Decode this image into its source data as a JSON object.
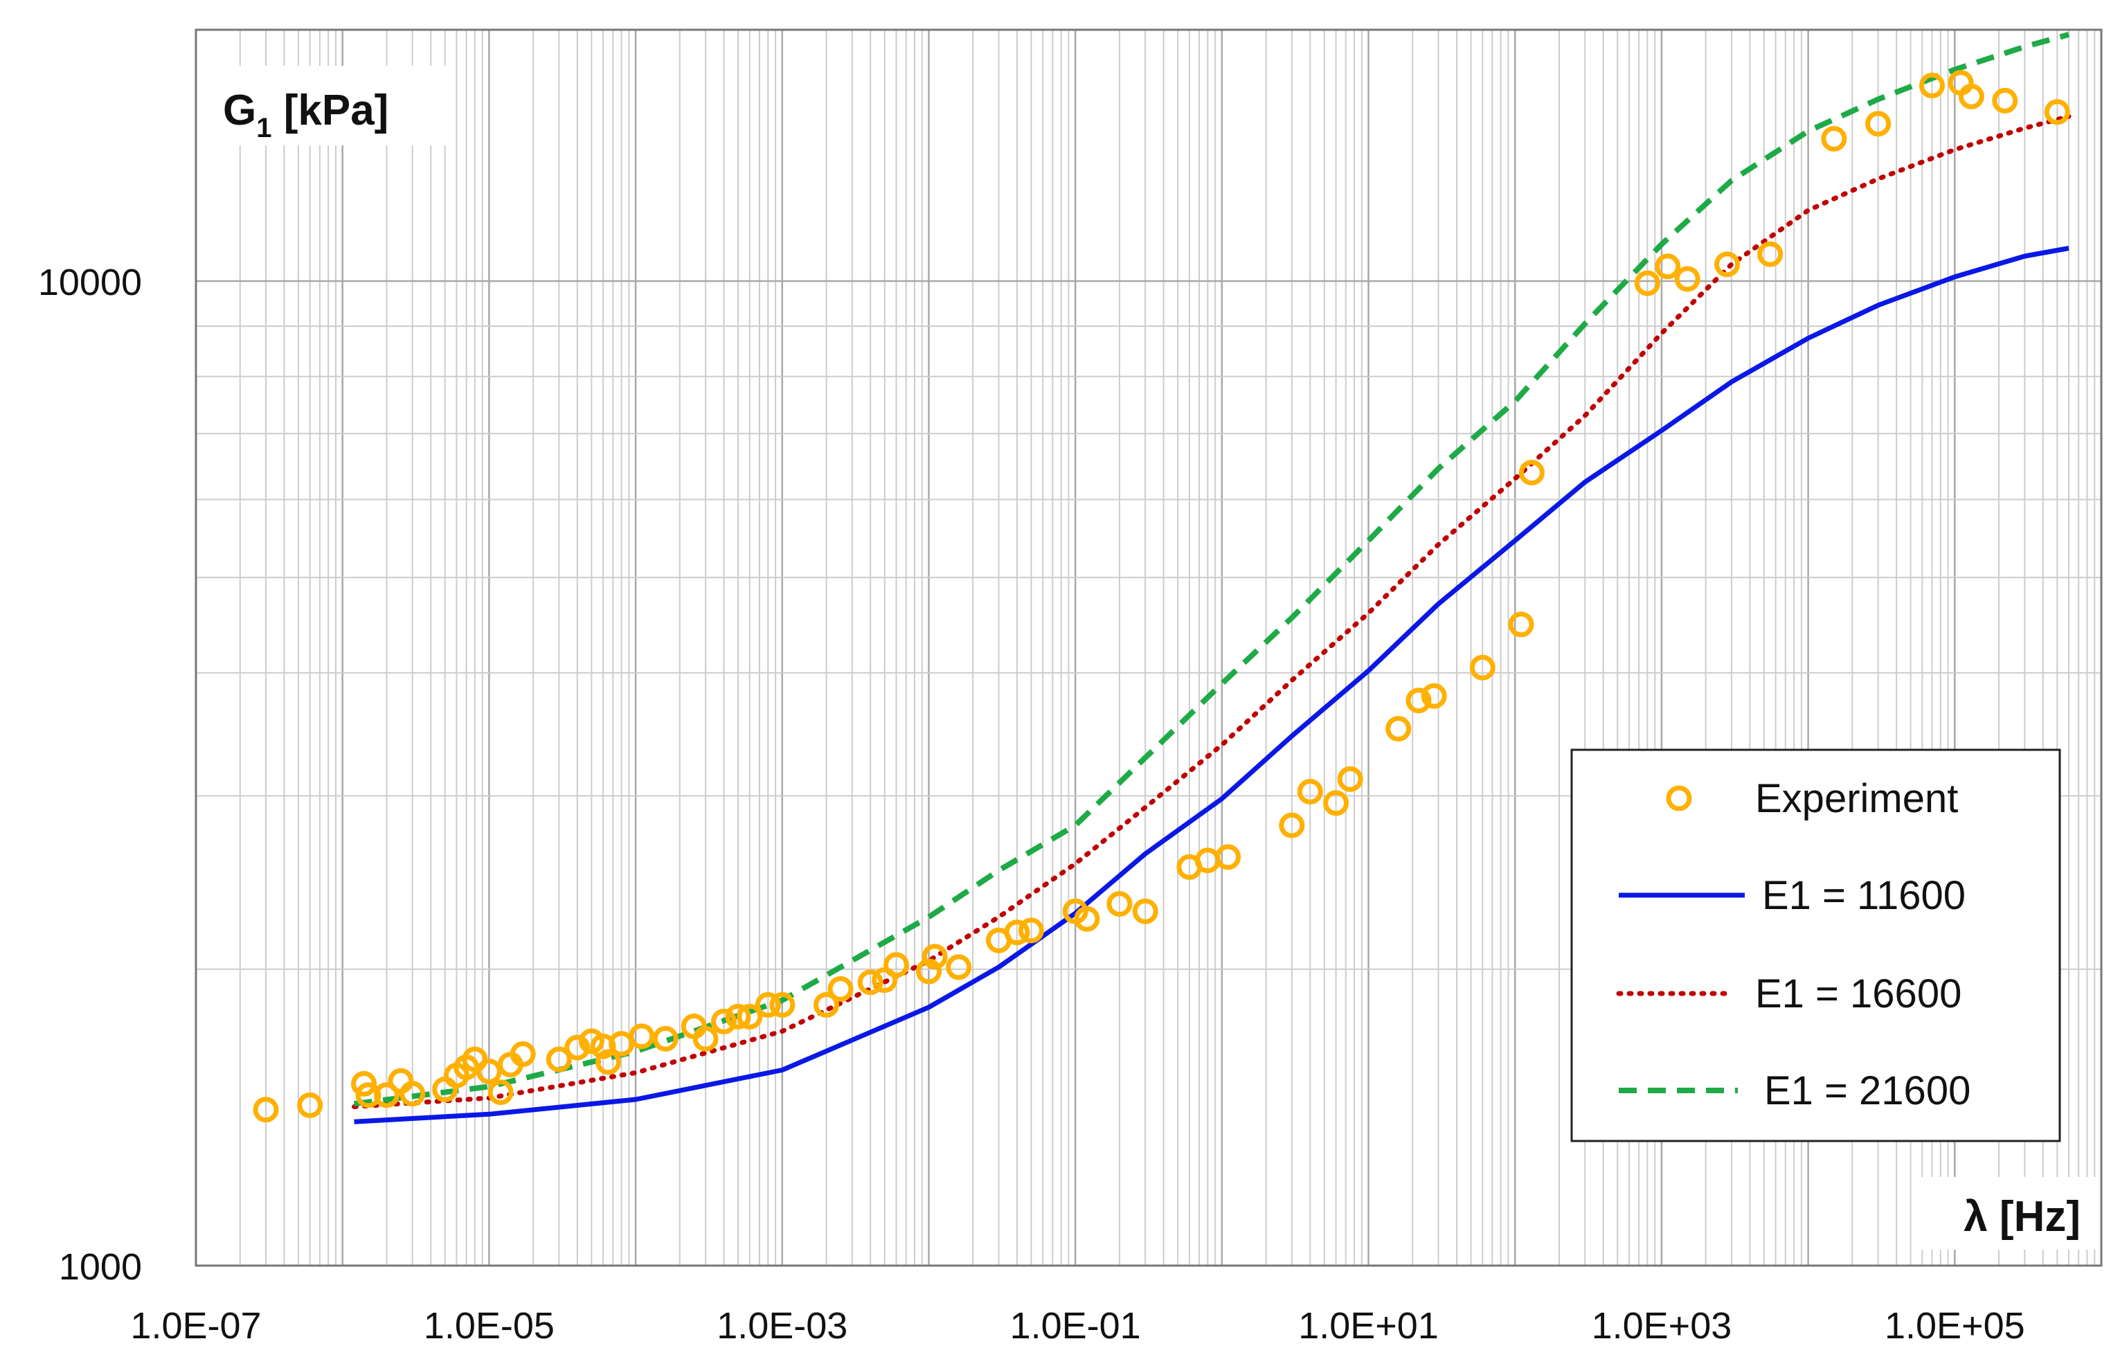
{
  "chart_data": {
    "type": "scatter",
    "x_scale": "log",
    "y_scale": "log",
    "xlim": [
      1e-07,
      1000000.0
    ],
    "ylim": [
      1000,
      18000
    ],
    "xlabel": "λ [Hz]",
    "ylabel": {
      "main": "G",
      "sub": "1",
      "unit": " [kPa]"
    },
    "x_ticks": [
      {
        "value": 1e-07,
        "label": "1.0E-07"
      },
      {
        "value": 1e-05,
        "label": "1.0E-05"
      },
      {
        "value": 0.001,
        "label": "1.0E-03"
      },
      {
        "value": 0.1,
        "label": "1.0E-01"
      },
      {
        "value": 10.0,
        "label": "1.0E+01"
      },
      {
        "value": 1000.0,
        "label": "1.0E+03"
      },
      {
        "value": 100000.0,
        "label": "1.0E+05"
      }
    ],
    "y_ticks": [
      {
        "value": 1000,
        "label": "1000"
      },
      {
        "value": 10000,
        "label": "10000"
      }
    ],
    "grid": true,
    "legend_position": "bottom-right",
    "series": [
      {
        "name": "Experiment",
        "kind": "markers",
        "color": "#FFB000",
        "points": [
          [
            3e-07,
            1440
          ],
          [
            6e-07,
            1455
          ],
          [
            1.4e-06,
            1530
          ],
          [
            1.5e-06,
            1490
          ],
          [
            2e-06,
            1490
          ],
          [
            2.5e-06,
            1540
          ],
          [
            3e-06,
            1495
          ],
          [
            5e-06,
            1510
          ],
          [
            6e-06,
            1560
          ],
          [
            7e-06,
            1590
          ],
          [
            8e-06,
            1620
          ],
          [
            1e-05,
            1575
          ],
          [
            1.2e-05,
            1500
          ],
          [
            1.4e-05,
            1600
          ],
          [
            1.7e-05,
            1640
          ],
          [
            3e-05,
            1620
          ],
          [
            4e-05,
            1665
          ],
          [
            5e-05,
            1690
          ],
          [
            6e-05,
            1670
          ],
          [
            6.5e-05,
            1610
          ],
          [
            8e-05,
            1680
          ],
          [
            0.00011,
            1710
          ],
          [
            0.00016,
            1700
          ],
          [
            0.00025,
            1750
          ],
          [
            0.0003,
            1700
          ],
          [
            0.0004,
            1770
          ],
          [
            0.0005,
            1790
          ],
          [
            0.0006,
            1790
          ],
          [
            0.0008,
            1840
          ],
          [
            0.001,
            1840
          ],
          [
            0.002,
            1840
          ],
          [
            0.0025,
            1910
          ],
          [
            0.004,
            1940
          ],
          [
            0.005,
            1950
          ],
          [
            0.006,
            2020
          ],
          [
            0.01,
            1990
          ],
          [
            0.011,
            2060
          ],
          [
            0.016,
            2010
          ],
          [
            0.03,
            2140
          ],
          [
            0.04,
            2180
          ],
          [
            0.05,
            2190
          ],
          [
            0.1,
            2290
          ],
          [
            0.12,
            2250
          ],
          [
            0.2,
            2330
          ],
          [
            0.3,
            2290
          ],
          [
            0.6,
            2540
          ],
          [
            0.8,
            2580
          ],
          [
            1.1,
            2600
          ],
          [
            3,
            2800
          ],
          [
            4,
            3030
          ],
          [
            6,
            2950
          ],
          [
            7.5,
            3120
          ],
          [
            16,
            3510
          ],
          [
            22,
            3750
          ],
          [
            28,
            3790
          ],
          [
            60,
            4050
          ],
          [
            110,
            4480
          ],
          [
            130,
            6390
          ],
          [
            800,
            9950
          ],
          [
            1100,
            10350
          ],
          [
            1500,
            10050
          ],
          [
            2800,
            10400
          ],
          [
            5500,
            10650
          ],
          [
            15000,
            13950
          ],
          [
            30000,
            14450
          ],
          [
            70000,
            15800
          ],
          [
            110000,
            15900
          ],
          [
            130000,
            15400
          ],
          [
            220000,
            15250
          ],
          [
            500000,
            14850
          ]
        ]
      },
      {
        "name": "E1 = 11600",
        "kind": "line",
        "color": "#0A18E6",
        "dash": "solid",
        "points": [
          [
            1.2e-06,
            1400
          ],
          [
            1e-05,
            1425
          ],
          [
            0.0001,
            1475
          ],
          [
            0.001,
            1580
          ],
          [
            0.01,
            1830
          ],
          [
            0.03,
            2010
          ],
          [
            0.1,
            2280
          ],
          [
            0.3,
            2620
          ],
          [
            1,
            2980
          ],
          [
            3,
            3450
          ],
          [
            10,
            4020
          ],
          [
            30,
            4700
          ],
          [
            100,
            5450
          ],
          [
            300,
            6250
          ],
          [
            1000,
            7050
          ],
          [
            3000,
            7900
          ],
          [
            10000,
            8750
          ],
          [
            30000,
            9450
          ],
          [
            100000,
            10100
          ],
          [
            300000,
            10600
          ],
          [
            600000,
            10800
          ]
        ]
      },
      {
        "name": "E1 = 16600",
        "kind": "line",
        "color": "#C00000",
        "dash": "dotted",
        "points": [
          [
            1.2e-06,
            1450
          ],
          [
            1e-05,
            1480
          ],
          [
            0.0001,
            1570
          ],
          [
            0.001,
            1730
          ],
          [
            0.01,
            2040
          ],
          [
            0.03,
            2260
          ],
          [
            0.1,
            2560
          ],
          [
            0.3,
            2920
          ],
          [
            1,
            3380
          ],
          [
            3,
            3930
          ],
          [
            10,
            4600
          ],
          [
            30,
            5400
          ],
          [
            100,
            6300
          ],
          [
            300,
            7300
          ],
          [
            1000,
            8850
          ],
          [
            3000,
            10400
          ],
          [
            10000,
            11800
          ],
          [
            30000,
            12700
          ],
          [
            100000,
            13600
          ],
          [
            300000,
            14300
          ],
          [
            600000,
            14700
          ]
        ]
      },
      {
        "name": "E1 = 21600",
        "kind": "line",
        "color": "#1EAA46",
        "dash": "dashed",
        "points": [
          [
            1.2e-06,
            1460
          ],
          [
            1e-05,
            1520
          ],
          [
            0.0001,
            1650
          ],
          [
            0.001,
            1860
          ],
          [
            0.01,
            2260
          ],
          [
            0.03,
            2520
          ],
          [
            0.1,
            2800
          ],
          [
            0.3,
            3280
          ],
          [
            1,
            3900
          ],
          [
            3,
            4550
          ],
          [
            10,
            5450
          ],
          [
            30,
            6450
          ],
          [
            100,
            7550
          ],
          [
            300,
            9050
          ],
          [
            1000,
            10900
          ],
          [
            3000,
            12650
          ],
          [
            10000,
            14200
          ],
          [
            30000,
            15300
          ],
          [
            100000,
            16400
          ],
          [
            300000,
            17300
          ],
          [
            600000,
            17800
          ]
        ]
      }
    ]
  }
}
